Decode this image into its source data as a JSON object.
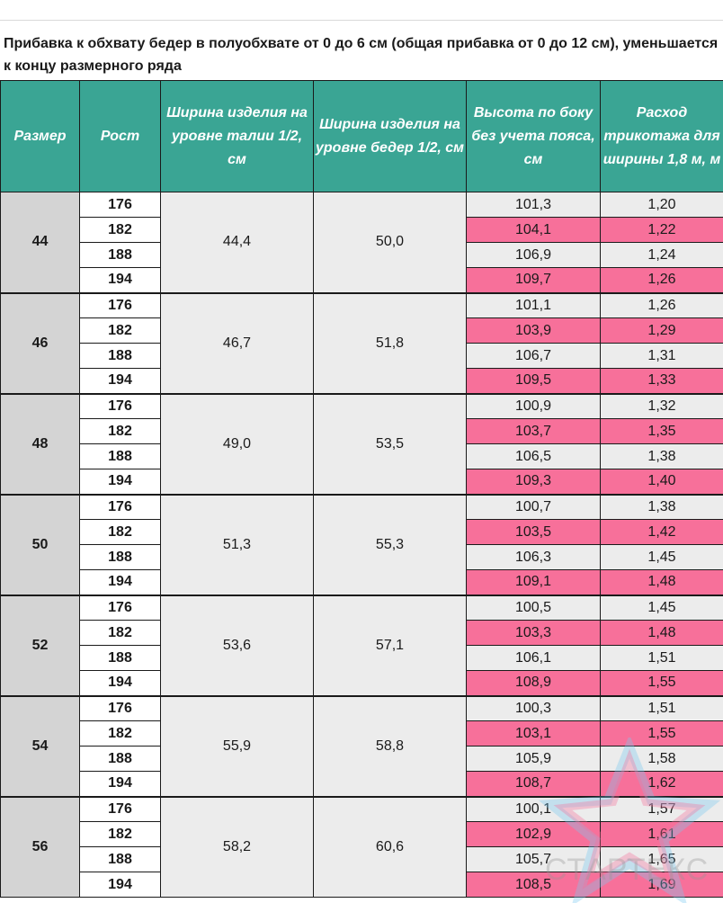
{
  "intro_text": "Прибавка к обхвату бедер в полуобхвате от 0 до 6 см (общая прибавка от 0 до 12 см), уменьшается к концу размерного ряда",
  "table": {
    "headers": [
      "Размер",
      "Рост",
      "Ширина изделия на уровне талии 1/2, см",
      "Ширина изделия на уровне бедер 1/2, см",
      "Высота по боку без учета пояса, см",
      "Расход трикотажа для ширины 1,8 м, м"
    ],
    "groups": [
      {
        "size": "44",
        "waist": "44,4",
        "hip": "50,0",
        "rows": [
          {
            "height": "176",
            "side": "101,3",
            "fabric": "1,20"
          },
          {
            "height": "182",
            "side": "104,1",
            "fabric": "1,22"
          },
          {
            "height": "188",
            "side": "106,9",
            "fabric": "1,24"
          },
          {
            "height": "194",
            "side": "109,7",
            "fabric": "1,26"
          }
        ]
      },
      {
        "size": "46",
        "waist": "46,7",
        "hip": "51,8",
        "rows": [
          {
            "height": "176",
            "side": "101,1",
            "fabric": "1,26"
          },
          {
            "height": "182",
            "side": "103,9",
            "fabric": "1,29"
          },
          {
            "height": "188",
            "side": "106,7",
            "fabric": "1,31"
          },
          {
            "height": "194",
            "side": "109,5",
            "fabric": "1,33"
          }
        ]
      },
      {
        "size": "48",
        "waist": "49,0",
        "hip": "53,5",
        "rows": [
          {
            "height": "176",
            "side": "100,9",
            "fabric": "1,32"
          },
          {
            "height": "182",
            "side": "103,7",
            "fabric": "1,35"
          },
          {
            "height": "188",
            "side": "106,5",
            "fabric": "1,38"
          },
          {
            "height": "194",
            "side": "109,3",
            "fabric": "1,40"
          }
        ]
      },
      {
        "size": "50",
        "waist": "51,3",
        "hip": "55,3",
        "rows": [
          {
            "height": "176",
            "side": "100,7",
            "fabric": "1,38"
          },
          {
            "height": "182",
            "side": "103,5",
            "fabric": "1,42"
          },
          {
            "height": "188",
            "side": "106,3",
            "fabric": "1,45"
          },
          {
            "height": "194",
            "side": "109,1",
            "fabric": "1,48"
          }
        ]
      },
      {
        "size": "52",
        "waist": "53,6",
        "hip": "57,1",
        "rows": [
          {
            "height": "176",
            "side": "100,5",
            "fabric": "1,45"
          },
          {
            "height": "182",
            "side": "103,3",
            "fabric": "1,48"
          },
          {
            "height": "188",
            "side": "106,1",
            "fabric": "1,51"
          },
          {
            "height": "194",
            "side": "108,9",
            "fabric": "1,55"
          }
        ]
      },
      {
        "size": "54",
        "waist": "55,9",
        "hip": "58,8",
        "rows": [
          {
            "height": "176",
            "side": "100,3",
            "fabric": "1,51"
          },
          {
            "height": "182",
            "side": "103,1",
            "fabric": "1,55"
          },
          {
            "height": "188",
            "side": "105,9",
            "fabric": "1,58"
          },
          {
            "height": "194",
            "side": "108,7",
            "fabric": "1,62"
          }
        ]
      },
      {
        "size": "56",
        "waist": "58,2",
        "hip": "60,6",
        "rows": [
          {
            "height": "176",
            "side": "100,1",
            "fabric": "1,57"
          },
          {
            "height": "182",
            "side": "102,9",
            "fabric": "1,61"
          },
          {
            "height": "188",
            "side": "105,7",
            "fabric": "1,65"
          },
          {
            "height": "194",
            "side": "108,5",
            "fabric": "1,69"
          }
        ]
      }
    ]
  },
  "colors": {
    "header_bg": "#3aa594",
    "highlight_pink": "#f7709a",
    "size_cell_bg": "#d4d4d4",
    "light_cell_bg": "#ececec"
  },
  "watermark": {
    "icon": "star-logo-icon",
    "text": "СТАРТЕКС"
  }
}
